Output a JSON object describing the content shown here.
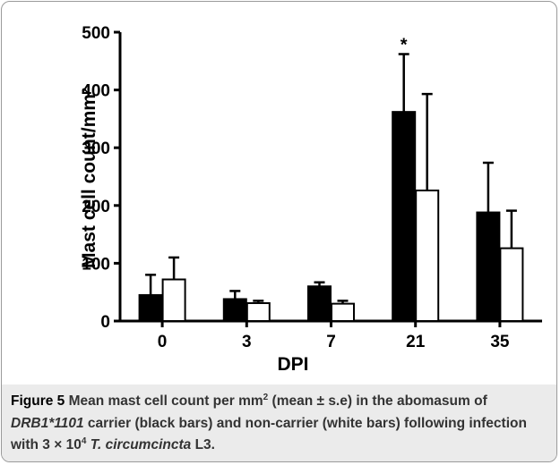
{
  "chart_data": {
    "type": "bar",
    "y_label": "Mast cell count/mm²",
    "x_label": "DPI",
    "categories": [
      "0",
      "3",
      "7",
      "21",
      "35"
    ],
    "series": [
      {
        "color": "#000000",
        "values": [
          45,
          38,
          60,
          362,
          188
        ],
        "errors": [
          35,
          14,
          7,
          100,
          86
        ]
      },
      {
        "color": "#ffffff",
        "values": [
          72,
          31,
          30,
          226,
          126
        ],
        "errors": [
          38,
          4,
          5,
          167,
          65
        ]
      }
    ],
    "ylim": [
      0,
      500
    ],
    "yticks": [
      0,
      100,
      200,
      300,
      400,
      500
    ],
    "annotations": [
      {
        "text": "*",
        "series": 0,
        "index": 3
      }
    ]
  },
  "caption": {
    "segments": [
      {
        "text": "Figure 5",
        "bold": true
      },
      {
        "text": " Mean mast cell count per mm"
      },
      {
        "text": "2",
        "sup": true
      },
      {
        "text": " (mean ± s.e) in the abomasum of "
      },
      {
        "text": "DRB1*1101",
        "italic": true
      },
      {
        "text": " carrier (black bars) and non-carrier (white bars) following infection with 3 × 10"
      },
      {
        "text": "4",
        "sup": true
      },
      {
        "text": " T. circumcincta",
        "italic": true
      },
      {
        "text": " L3."
      }
    ]
  }
}
